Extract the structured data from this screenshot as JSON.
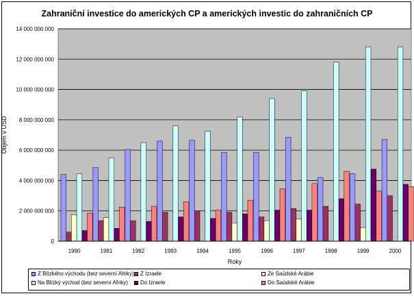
{
  "chart_data": {
    "type": "bar",
    "title": "Zahraniční investice do amerických CP a amerických investic do zahraničních CP",
    "xlabel": "Roky",
    "ylabel": "Objem v USD",
    "categories": [
      "1990",
      "1991",
      "1992",
      "1993",
      "1994",
      "1995",
      "1996",
      "1997",
      "1998",
      "1999",
      "2000"
    ],
    "ylim": [
      0,
      14000000000
    ],
    "yticks": [
      "0",
      "2 000 000 000",
      "4 000 000 000",
      "6 000 000 000",
      "8 000 000 000",
      "10 000 000 000",
      "12 000 000 000",
      "14 000 000 000"
    ],
    "ytick_values": [
      0,
      2000000000,
      4000000000,
      6000000000,
      8000000000,
      10000000000,
      12000000000,
      14000000000
    ],
    "grid": true,
    "legend_position": "bottom",
    "series": [
      {
        "name": "Z Blízkého východu (bez severní Afriky)",
        "color": "#9999ff",
        "values": [
          4400000000,
          4850000000,
          6050000000,
          6600000000,
          6650000000,
          5850000000,
          5850000000,
          6850000000,
          4200000000,
          4450000000,
          6700000000
        ]
      },
      {
        "name": "Na Blízký východ (bez severní Afriky)",
        "color": "#ccffff",
        "values": [
          4450000000,
          5500000000,
          6500000000,
          7600000000,
          7250000000,
          8200000000,
          9400000000,
          9900000000,
          11800000000,
          12800000000,
          12800000000
        ]
      },
      {
        "name": "Z Izraele",
        "color": "#993366",
        "values": [
          600000000,
          1350000000,
          1350000000,
          1900000000,
          2000000000,
          1900000000,
          1600000000,
          2150000000,
          2300000000,
          2450000000,
          3000000000
        ]
      },
      {
        "name": "Do Izraele",
        "color": "#660066",
        "values": [
          700000000,
          850000000,
          1300000000,
          1600000000,
          1500000000,
          1800000000,
          2050000000,
          2050000000,
          2800000000,
          4750000000,
          3750000000
        ]
      },
      {
        "name": "Ze Saúdské Arábie",
        "color": "#ffffcc",
        "values": [
          1750000000,
          1550000000,
          0,
          0,
          0,
          1200000000,
          1350000000,
          1450000000,
          0,
          900000000,
          0
        ]
      },
      {
        "name": "Do Saúdské Arábie",
        "color": "#ff8080",
        "values": [
          1850000000,
          2250000000,
          2300000000,
          2600000000,
          2050000000,
          2700000000,
          3450000000,
          3800000000,
          4600000000,
          3300000000,
          3600000000
        ]
      }
    ]
  }
}
